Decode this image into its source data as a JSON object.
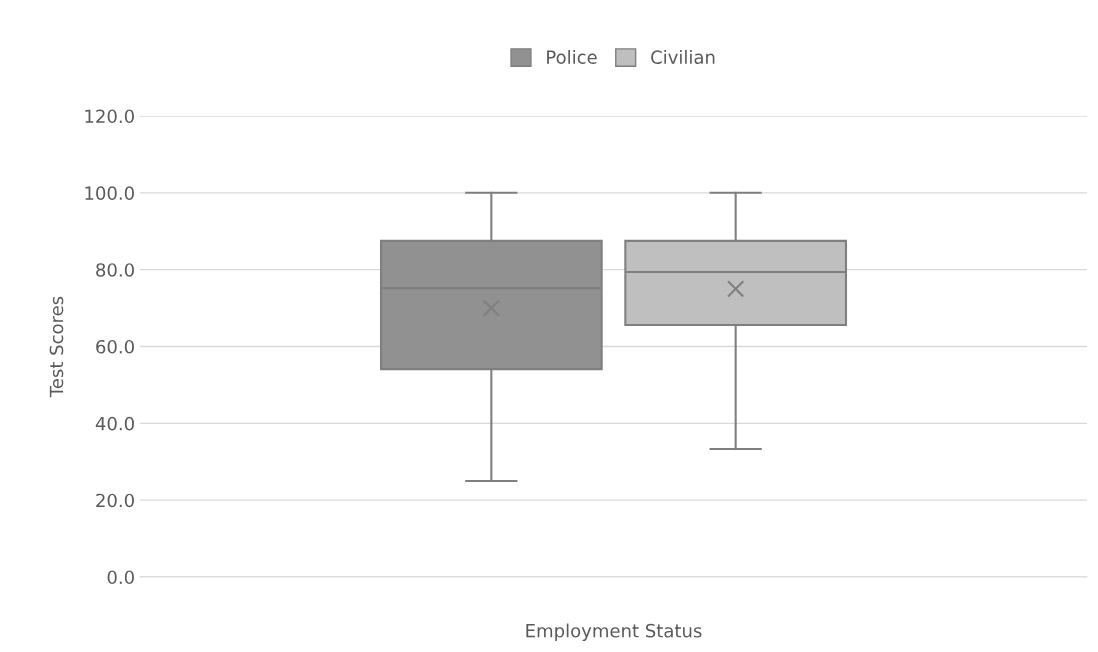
{
  "chart_data": {
    "type": "box",
    "xlabel": "Employment Status",
    "ylabel": "Test Scores",
    "categories": [
      null
    ],
    "series": [
      {
        "name": "Police",
        "color": "#919191",
        "boxes": [
          {
            "low": 25.0,
            "q1": 54.1,
            "median": 75.2,
            "q3": 87.5,
            "high": 100.0,
            "mean": 70.0
          }
        ]
      },
      {
        "name": "Civilian",
        "color": "#bfbfbf",
        "boxes": [
          {
            "low": 33.3,
            "q1": 65.6,
            "median": 79.4,
            "q3": 87.5,
            "high": 100.0,
            "mean": 75.0
          }
        ]
      }
    ],
    "ylim": [
      0,
      120
    ],
    "yticks": [
      {
        "value": 0,
        "label": "0.0"
      },
      {
        "value": 20,
        "label": "20.0"
      },
      {
        "value": 40,
        "label": "40.0"
      },
      {
        "value": 60,
        "label": "60.0"
      },
      {
        "value": 80,
        "label": "80.0"
      },
      {
        "value": 100,
        "label": "100.0"
      },
      {
        "value": 120,
        "label": "120.0"
      }
    ],
    "grid": "y",
    "legend": "top",
    "marker": "cross"
  }
}
